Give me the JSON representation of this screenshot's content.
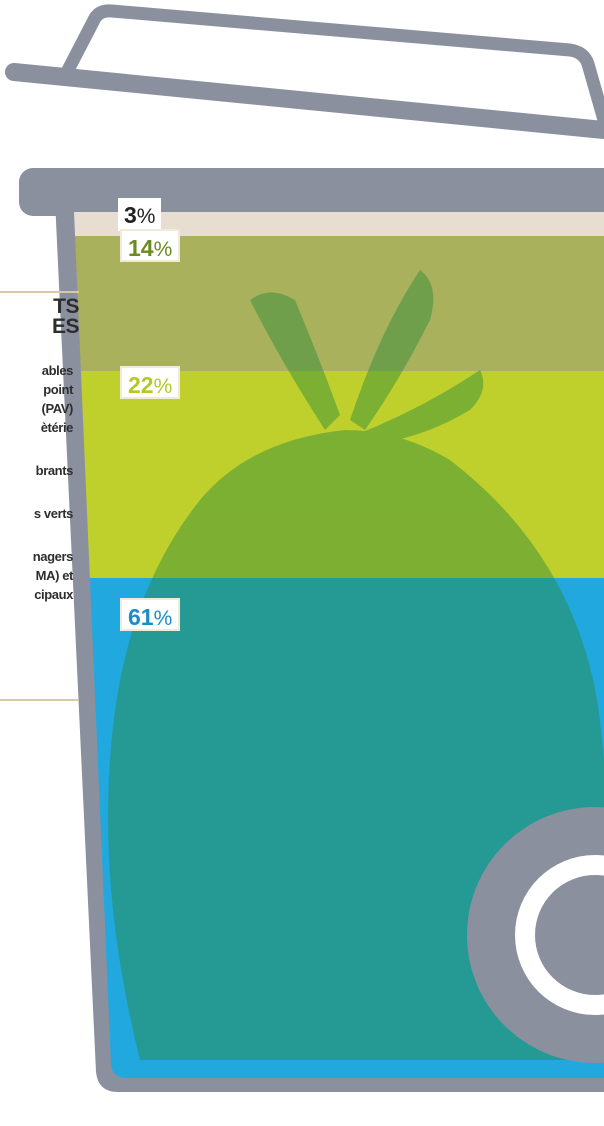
{
  "colors": {
    "bin": "#8b909e",
    "seg_top": "#e7ddd0",
    "seg_olive": "#a9b15c",
    "seg_lime": "#bfd02d",
    "seg_blue": "#20a8df",
    "bag": "#46a940",
    "bin_inner": "#1c9ad3"
  },
  "legend": {
    "title_line1": "TS",
    "title_line2": "ES",
    "items": [
      "ables",
      "point",
      "(PAV)",
      "ètérie",
      "brants",
      "s verts",
      "nagers",
      "MA) et",
      "cipaux"
    ]
  },
  "chart_data": {
    "type": "stacked-bar",
    "title": "",
    "categories": [
      ""
    ],
    "series": [
      {
        "values": [
          3
        ],
        "label": "3",
        "unit": "%",
        "label_color": "#222222",
        "fill": "#e7ddd0"
      },
      {
        "values": [
          14
        ],
        "label": "14",
        "unit": "%",
        "label_color": "#6a8a22",
        "fill": "#a9b15c"
      },
      {
        "values": [
          22
        ],
        "label": "22",
        "unit": "%",
        "label_color": "#b5c925",
        "fill": "#bfd02d"
      },
      {
        "values": [
          61
        ],
        "label": "61",
        "unit": "%",
        "label_color": "#1b8cc7",
        "fill": "#20a8df"
      }
    ],
    "ylim": [
      0,
      100
    ]
  }
}
